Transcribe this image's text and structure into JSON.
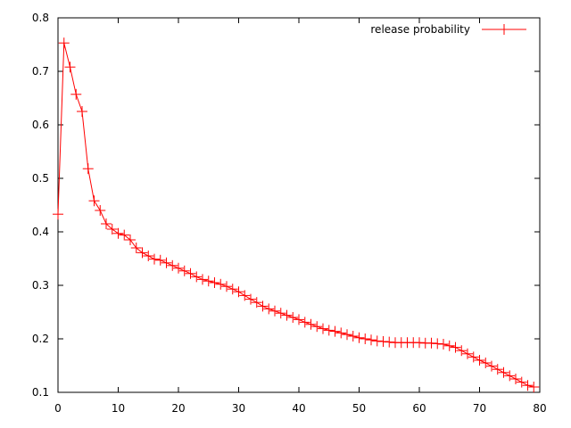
{
  "chart_data": {
    "type": "line",
    "title": "",
    "xlabel": "",
    "ylabel": "",
    "xlim": [
      0,
      80
    ],
    "ylim": [
      0.1,
      0.8
    ],
    "x_ticks": [
      0,
      10,
      20,
      30,
      40,
      50,
      60,
      70,
      80
    ],
    "y_ticks": [
      0.1,
      0.2,
      0.3,
      0.4,
      0.5,
      0.6,
      0.7,
      0.8
    ],
    "x_tick_labels": [
      "0",
      "10",
      "20",
      "30",
      "40",
      "50",
      "60",
      "70",
      "80"
    ],
    "y_tick_labels": [
      "0.1",
      "0.2",
      "0.3",
      "0.4",
      "0.5",
      "0.6",
      "0.7",
      "0.8"
    ],
    "grid": false,
    "legend_position": "top-right",
    "series": [
      {
        "name": "release probability",
        "color": "#ff0000",
        "marker": "plus",
        "x": [
          0,
          1,
          2,
          3,
          4,
          5,
          6,
          7,
          8,
          9,
          10,
          11,
          12,
          13,
          14,
          15,
          16,
          17,
          18,
          19,
          20,
          21,
          22,
          23,
          24,
          25,
          26,
          27,
          28,
          29,
          30,
          31,
          32,
          33,
          34,
          35,
          36,
          37,
          38,
          39,
          40,
          41,
          42,
          43,
          44,
          45,
          46,
          47,
          48,
          49,
          50,
          51,
          52,
          53,
          54,
          55,
          56,
          57,
          58,
          59,
          60,
          61,
          62,
          63,
          64,
          65,
          66,
          67,
          68,
          69,
          70,
          71,
          72,
          73,
          74,
          75,
          76,
          77,
          78,
          79
        ],
        "y": [
          0.433,
          0.753,
          0.708,
          0.657,
          0.625,
          0.518,
          0.458,
          0.44,
          0.415,
          0.405,
          0.397,
          0.394,
          0.385,
          0.37,
          0.361,
          0.355,
          0.349,
          0.347,
          0.342,
          0.337,
          0.332,
          0.327,
          0.322,
          0.316,
          0.311,
          0.308,
          0.305,
          0.302,
          0.298,
          0.293,
          0.288,
          0.281,
          0.274,
          0.268,
          0.261,
          0.256,
          0.252,
          0.248,
          0.244,
          0.24,
          0.236,
          0.231,
          0.227,
          0.223,
          0.219,
          0.216,
          0.214,
          0.211,
          0.208,
          0.205,
          0.202,
          0.2,
          0.198,
          0.196,
          0.195,
          0.194,
          0.193,
          0.193,
          0.193,
          0.193,
          0.193,
          0.192,
          0.192,
          0.191,
          0.19,
          0.187,
          0.184,
          0.178,
          0.172,
          0.166,
          0.16,
          0.155,
          0.149,
          0.143,
          0.137,
          0.131,
          0.125,
          0.119,
          0.113,
          0.11
        ]
      }
    ]
  }
}
